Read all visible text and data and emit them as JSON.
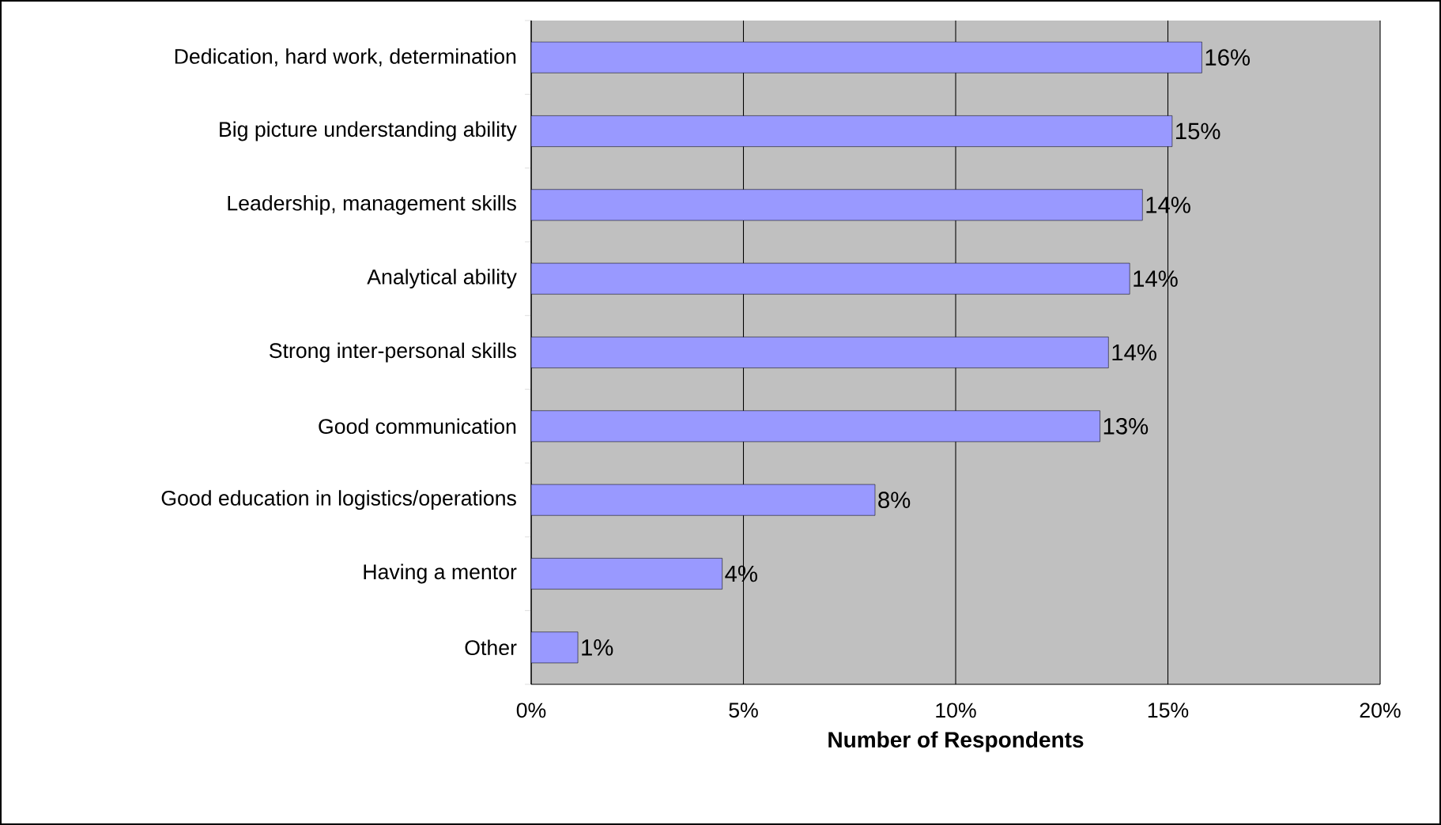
{
  "chart_data": {
    "type": "bar",
    "orientation": "horizontal",
    "categories": [
      "Dedication, hard work, determination",
      "Big picture understanding ability",
      "Leadership, management skills",
      "Analytical ability",
      "Strong inter-personal skills",
      "Good communication",
      "Good education in logistics/operations",
      "Having a mentor",
      "Other"
    ],
    "values": [
      15.8,
      15.1,
      14.4,
      14.1,
      13.6,
      13.4,
      8.1,
      4.5,
      1.1
    ],
    "value_labels": [
      "16%",
      "15%",
      "14%",
      "14%",
      "14%",
      "13%",
      "8%",
      "4%",
      "1%"
    ],
    "color": "#9999ff",
    "xlim": [
      0,
      20
    ],
    "xticks": [
      {
        "value": 0,
        "label": "0%"
      },
      {
        "value": 5,
        "label": "5%"
      },
      {
        "value": 10,
        "label": "10%"
      },
      {
        "value": 15,
        "label": "15%"
      },
      {
        "value": 20,
        "label": "20%"
      }
    ],
    "xlabel": "Number of Respondents",
    "grid": "x"
  }
}
